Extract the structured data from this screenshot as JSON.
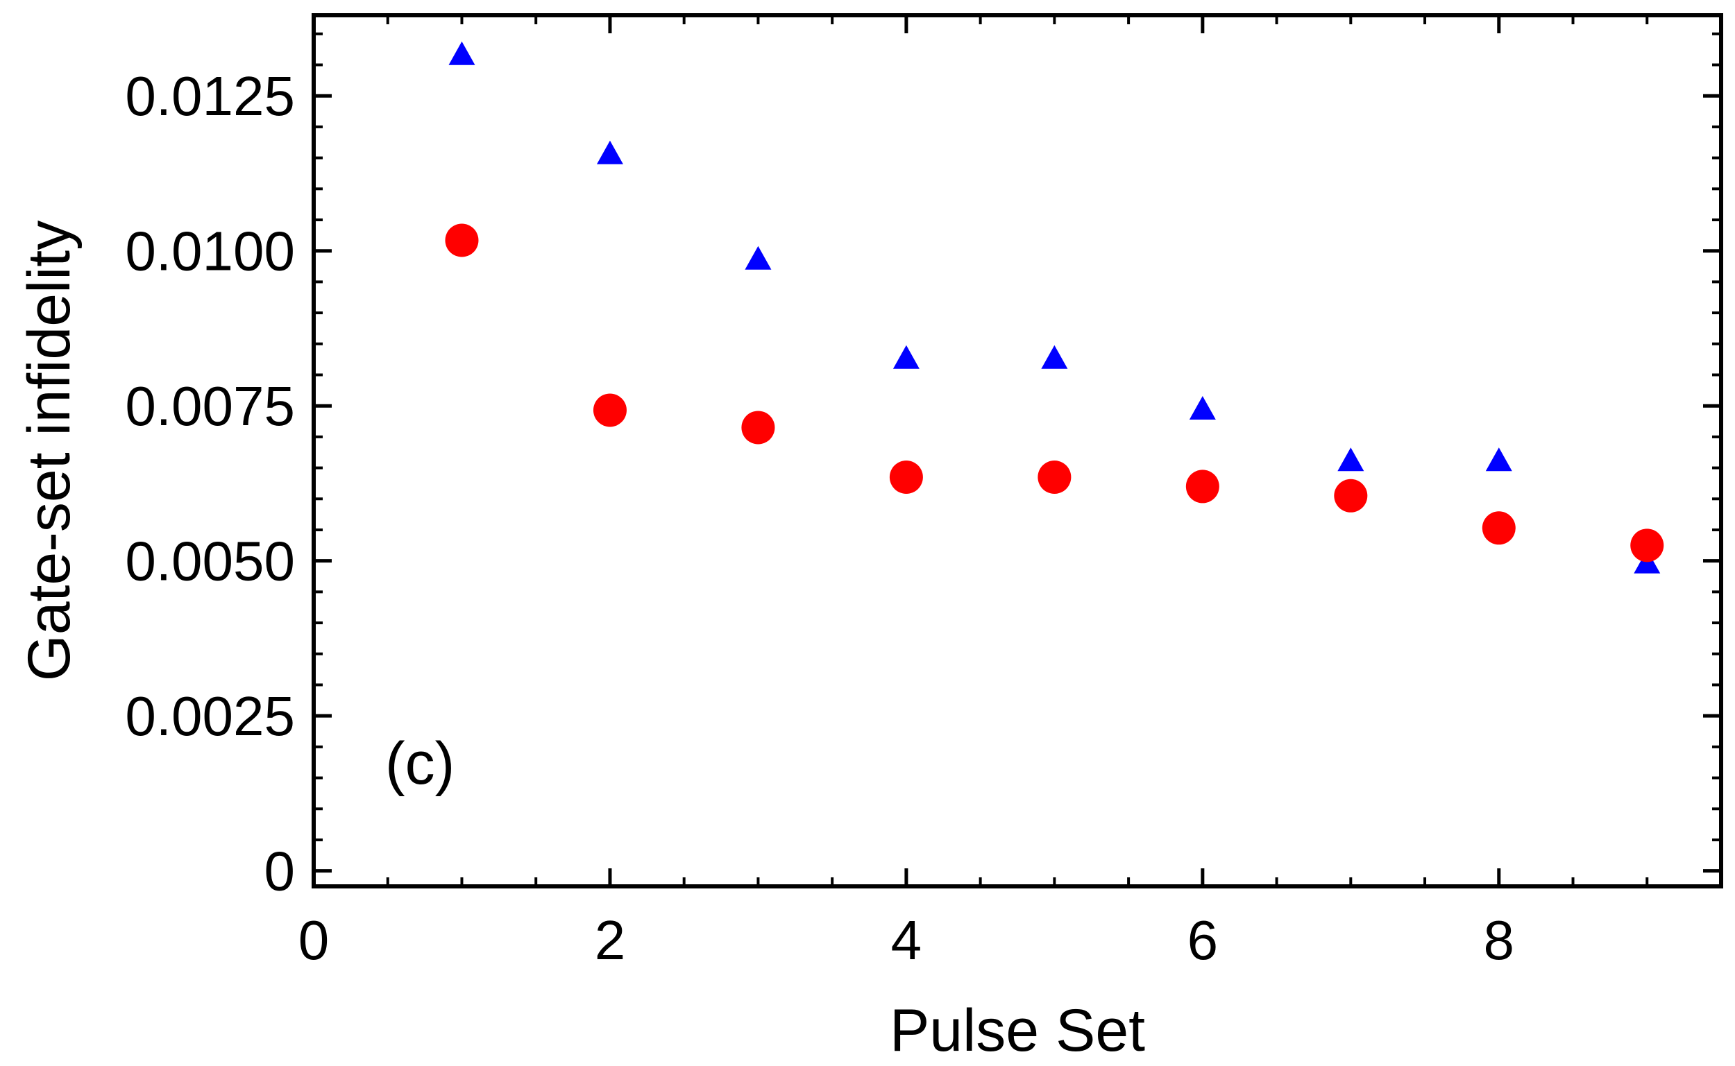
{
  "chart_data": {
    "type": "scatter",
    "title": "",
    "xlabel": "Pulse Set",
    "ylabel": "Gate-set infidelity",
    "panel_label": "(c)",
    "xlim": [
      0,
      9.5
    ],
    "ylim": [
      -0.00025,
      0.0138
    ],
    "x_ticks": [
      0,
      2,
      4,
      6,
      8
    ],
    "x_tick_labels": [
      "0",
      "2",
      "4",
      "6",
      "8"
    ],
    "y_ticks": [
      0,
      0.0025,
      0.005,
      0.0075,
      0.01,
      0.0125
    ],
    "y_tick_labels": [
      "0",
      "0.0025",
      "0.0050",
      "0.0075",
      "0.0100",
      "0.0125"
    ],
    "grid": false,
    "series": [
      {
        "marker": "triangle",
        "color": "#0000ff",
        "x": [
          1,
          2,
          3,
          4,
          5,
          6,
          7,
          8,
          9
        ],
        "y": [
          0.01315,
          0.01155,
          0.00985,
          0.00825,
          0.00825,
          0.00743,
          0.0066,
          0.0066,
          0.00495
        ]
      },
      {
        "marker": "circle",
        "color": "#ff0000",
        "x": [
          1,
          2,
          3,
          4,
          5,
          6,
          7,
          8,
          9
        ],
        "y": [
          0.01017,
          0.00743,
          0.00715,
          0.00635,
          0.00635,
          0.0062,
          0.00605,
          0.00553,
          0.00525
        ]
      }
    ]
  }
}
